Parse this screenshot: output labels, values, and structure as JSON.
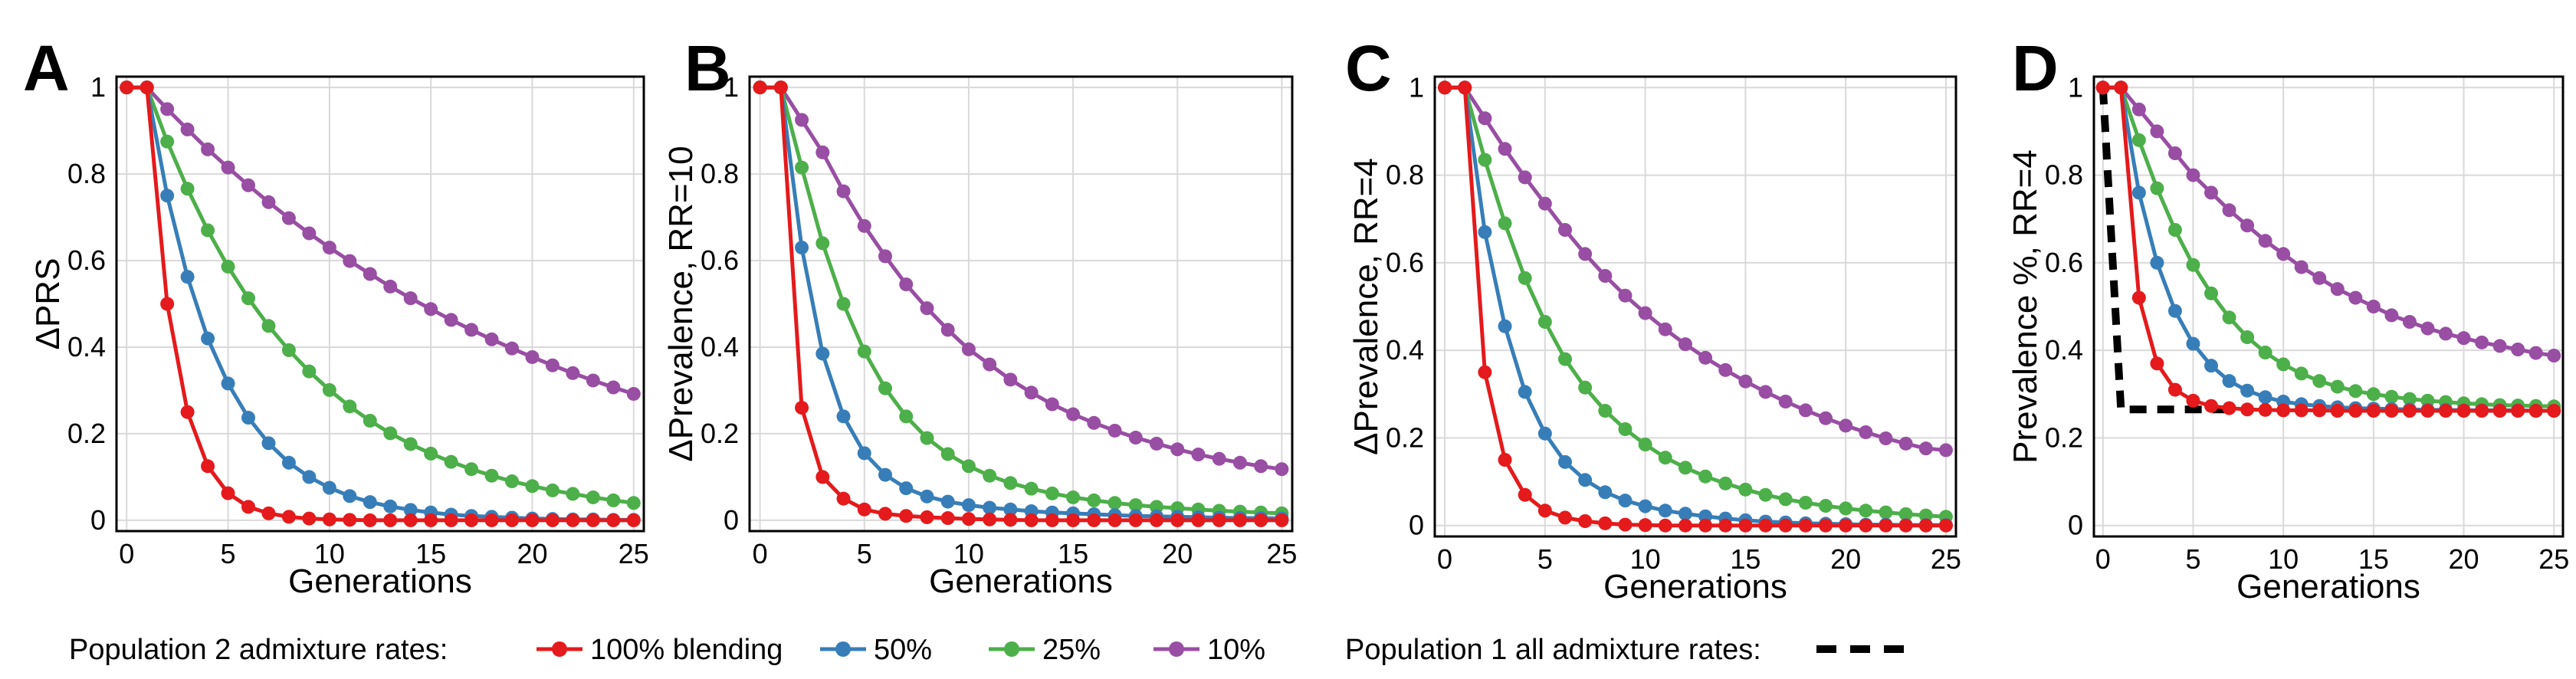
{
  "legend": {
    "population2_label": "Population 2 admixture rates:",
    "population1_label": "Population 1 all admixture rates:"
  },
  "series_colors": {
    "100% blending": "#e41a1c",
    "50%": "#377eb8",
    "25%": "#4daf4a",
    "10%": "#984ea3",
    "population1": "#000000"
  },
  "chart_data": [
    {
      "type": "line",
      "panel": "A",
      "title": "",
      "xlabel": "Generations",
      "ylabel": "ΔPRS",
      "xlim": [
        0,
        25
      ],
      "ylim": [
        0,
        1
      ],
      "xticks": [
        "0",
        "5",
        "10",
        "15",
        "20",
        "25"
      ],
      "yticks": [
        "0",
        "0.2",
        "0.4",
        "0.6",
        "0.8",
        "1"
      ],
      "x": [
        0,
        1,
        2,
        3,
        4,
        5,
        6,
        7,
        8,
        9,
        10,
        11,
        12,
        13,
        14,
        15,
        16,
        17,
        18,
        19,
        20,
        21,
        22,
        23,
        24,
        25
      ],
      "series": [
        {
          "name": "100% blending",
          "values": [
            1,
            1,
            0.5,
            0.25,
            0.125,
            0.0625,
            0.031,
            0.016,
            0.008,
            0.004,
            0.002,
            0.001,
            0,
            0,
            0,
            0,
            0,
            0,
            0,
            0,
            0,
            0,
            0,
            0,
            0,
            0
          ]
        },
        {
          "name": "50%",
          "values": [
            1,
            1,
            0.75,
            0.5625,
            0.42,
            0.316,
            0.237,
            0.178,
            0.133,
            0.1,
            0.075,
            0.056,
            0.042,
            0.032,
            0.024,
            0.018,
            0.013,
            0.01,
            0.008,
            0.006,
            0.004,
            0.003,
            0.002,
            0.002,
            0.001,
            0.001
          ]
        },
        {
          "name": "25%",
          "values": [
            1,
            1,
            0.875,
            0.766,
            0.67,
            0.586,
            0.513,
            0.449,
            0.393,
            0.344,
            0.301,
            0.263,
            0.23,
            0.201,
            0.176,
            0.154,
            0.135,
            0.118,
            0.103,
            0.09,
            0.079,
            0.069,
            0.061,
            0.053,
            0.046,
            0.04
          ]
        },
        {
          "name": "10%",
          "values": [
            1,
            1,
            0.95,
            0.903,
            0.857,
            0.815,
            0.774,
            0.735,
            0.698,
            0.663,
            0.63,
            0.599,
            0.569,
            0.54,
            0.513,
            0.488,
            0.463,
            0.44,
            0.418,
            0.397,
            0.377,
            0.358,
            0.34,
            0.323,
            0.307,
            0.292
          ]
        }
      ]
    },
    {
      "type": "line",
      "panel": "B",
      "title": "",
      "xlabel": "Generations",
      "ylabel": "ΔPrevalence, RR=10",
      "xlim": [
        0,
        25
      ],
      "ylim": [
        0,
        1
      ],
      "xticks": [
        "0",
        "5",
        "10",
        "15",
        "20",
        "25"
      ],
      "yticks": [
        "0",
        "0.2",
        "0.4",
        "0.6",
        "0.8",
        "1"
      ],
      "x": [
        0,
        1,
        2,
        3,
        4,
        5,
        6,
        7,
        8,
        9,
        10,
        11,
        12,
        13,
        14,
        15,
        16,
        17,
        18,
        19,
        20,
        21,
        22,
        23,
        24,
        25
      ],
      "series": [
        {
          "name": "100% blending",
          "values": [
            1,
            1,
            0.26,
            0.1,
            0.05,
            0.025,
            0.015,
            0.01,
            0.007,
            0.005,
            0.003,
            0.002,
            0.001,
            0,
            0,
            0,
            0,
            0,
            0,
            0,
            0,
            0,
            0,
            0,
            0,
            0
          ]
        },
        {
          "name": "50%",
          "values": [
            1,
            1,
            0.63,
            0.385,
            0.24,
            0.155,
            0.105,
            0.074,
            0.055,
            0.043,
            0.035,
            0.029,
            0.025,
            0.021,
            0.018,
            0.016,
            0.014,
            0.012,
            0.01,
            0.009,
            0.008,
            0.007,
            0.006,
            0.005,
            0.005,
            0.004
          ]
        },
        {
          "name": "25%",
          "values": [
            1,
            1,
            0.815,
            0.64,
            0.5,
            0.39,
            0.305,
            0.24,
            0.19,
            0.153,
            0.125,
            0.103,
            0.086,
            0.073,
            0.062,
            0.053,
            0.046,
            0.04,
            0.035,
            0.031,
            0.028,
            0.025,
            0.022,
            0.02,
            0.018,
            0.016
          ]
        },
        {
          "name": "10%",
          "values": [
            1,
            1,
            0.925,
            0.85,
            0.76,
            0.68,
            0.61,
            0.545,
            0.49,
            0.44,
            0.395,
            0.36,
            0.325,
            0.295,
            0.268,
            0.245,
            0.225,
            0.207,
            0.191,
            0.177,
            0.164,
            0.152,
            0.142,
            0.133,
            0.125,
            0.118
          ]
        }
      ]
    },
    {
      "type": "line",
      "panel": "C",
      "title": "",
      "xlabel": "Generations",
      "ylabel": "ΔPrevalence, RR=4",
      "xlim": [
        0,
        25
      ],
      "ylim": [
        0,
        1
      ],
      "xticks": [
        "0",
        "5",
        "10",
        "15",
        "20",
        "25"
      ],
      "yticks": [
        "0",
        "0.2",
        "0.4",
        "0.6",
        "0.8",
        "1"
      ],
      "x": [
        0,
        1,
        2,
        3,
        4,
        5,
        6,
        7,
        8,
        9,
        10,
        11,
        12,
        13,
        14,
        15,
        16,
        17,
        18,
        19,
        20,
        21,
        22,
        23,
        24,
        25
      ],
      "series": [
        {
          "name": "100% blending",
          "values": [
            1,
            1,
            0.35,
            0.15,
            0.07,
            0.034,
            0.018,
            0.01,
            0.005,
            0.002,
            0.001,
            0,
            0,
            0,
            0,
            0,
            0,
            0,
            0,
            0,
            0,
            0,
            0,
            0,
            0,
            0
          ]
        },
        {
          "name": "50%",
          "values": [
            1,
            1,
            0.67,
            0.455,
            0.305,
            0.21,
            0.145,
            0.104,
            0.076,
            0.057,
            0.044,
            0.034,
            0.027,
            0.021,
            0.016,
            0.012,
            0.009,
            0.007,
            0.005,
            0.004,
            0.003,
            0.002,
            0.002,
            0.001,
            0.001,
            0.001
          ]
        },
        {
          "name": "25%",
          "values": [
            1,
            1,
            0.835,
            0.69,
            0.565,
            0.465,
            0.38,
            0.315,
            0.262,
            0.22,
            0.185,
            0.155,
            0.132,
            0.112,
            0.096,
            0.082,
            0.07,
            0.06,
            0.052,
            0.045,
            0.039,
            0.034,
            0.03,
            0.026,
            0.023,
            0.02
          ]
        },
        {
          "name": "10%",
          "values": [
            1,
            1,
            0.93,
            0.86,
            0.795,
            0.735,
            0.675,
            0.62,
            0.57,
            0.525,
            0.485,
            0.448,
            0.414,
            0.383,
            0.355,
            0.329,
            0.305,
            0.283,
            0.263,
            0.245,
            0.228,
            0.213,
            0.199,
            0.187,
            0.176,
            0.172
          ]
        }
      ]
    },
    {
      "type": "line",
      "panel": "D",
      "title": "",
      "xlabel": "Generations",
      "ylabel": "Prevalence %, RR=4",
      "xlim": [
        0,
        25
      ],
      "ylim": [
        0,
        1
      ],
      "xticks": [
        "0",
        "5",
        "10",
        "15",
        "20",
        "25"
      ],
      "yticks": [
        "0",
        "0.2",
        "0.4",
        "0.6",
        "0.8",
        "1"
      ],
      "x": [
        0,
        1,
        2,
        3,
        4,
        5,
        6,
        7,
        8,
        9,
        10,
        11,
        12,
        13,
        14,
        15,
        16,
        17,
        18,
        19,
        20,
        21,
        22,
        23,
        24,
        25
      ],
      "series": [
        {
          "name": "100% blending",
          "values": [
            1,
            1,
            0.52,
            0.37,
            0.31,
            0.285,
            0.273,
            0.268,
            0.265,
            0.264,
            0.263,
            0.263,
            0.263,
            0.262,
            0.262,
            0.262,
            0.262,
            0.262,
            0.262,
            0.262,
            0.262,
            0.262,
            0.262,
            0.262,
            0.262,
            0.262
          ]
        },
        {
          "name": "50%",
          "values": [
            1,
            1,
            0.76,
            0.6,
            0.49,
            0.415,
            0.365,
            0.33,
            0.308,
            0.293,
            0.283,
            0.277,
            0.273,
            0.27,
            0.268,
            0.267,
            0.266,
            0.265,
            0.264,
            0.264,
            0.263,
            0.263,
            0.263,
            0.263,
            0.262,
            0.262
          ]
        },
        {
          "name": "25%",
          "values": [
            1,
            1,
            0.88,
            0.77,
            0.675,
            0.595,
            0.53,
            0.475,
            0.43,
            0.395,
            0.368,
            0.347,
            0.33,
            0.317,
            0.307,
            0.3,
            0.294,
            0.289,
            0.285,
            0.282,
            0.279,
            0.277,
            0.275,
            0.274,
            0.273,
            0.272
          ]
        },
        {
          "name": "10%",
          "values": [
            1,
            1,
            0.95,
            0.9,
            0.85,
            0.8,
            0.76,
            0.72,
            0.685,
            0.65,
            0.62,
            0.59,
            0.565,
            0.54,
            0.52,
            0.5,
            0.48,
            0.465,
            0.45,
            0.438,
            0.428,
            0.418,
            0.41,
            0.402,
            0.394,
            0.388
          ]
        }
      ],
      "reference_line": {
        "name": "Population 1",
        "x": [
          0,
          1,
          7
        ],
        "values": [
          1,
          0.265,
          0.265
        ],
        "style": "dashed"
      }
    }
  ]
}
